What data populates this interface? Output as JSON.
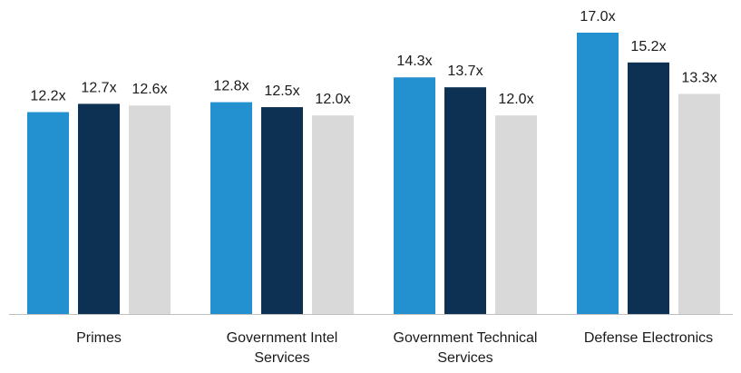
{
  "chart_data": {
    "type": "bar",
    "title": "",
    "xlabel": "",
    "ylabel": "",
    "categories": [
      [
        "Primes"
      ],
      [
        "Government Intel",
        "Services"
      ],
      [
        "Government Technical",
        "Services"
      ],
      [
        "Defense Electronics"
      ]
    ],
    "series": [
      {
        "color": "#2390d0",
        "values": [
          12.2,
          12.8,
          14.3,
          17.0
        ],
        "labels": [
          "12.2x",
          "12.8x",
          "14.3x",
          "17.0x"
        ]
      },
      {
        "color": "#0d3152",
        "values": [
          12.7,
          12.5,
          13.7,
          15.2
        ],
        "labels": [
          "12.7x",
          "12.5x",
          "13.7x",
          "15.2x"
        ]
      },
      {
        "color": "#d9d9d9",
        "values": [
          12.6,
          12.0,
          12.0,
          13.3
        ],
        "labels": [
          "12.6x",
          "12.0x",
          "12.0x",
          "13.3x"
        ]
      }
    ],
    "ylim": [
      0,
      17.0
    ],
    "grid": false,
    "legend": "none",
    "baseline_color": "#bfbfbf"
  }
}
